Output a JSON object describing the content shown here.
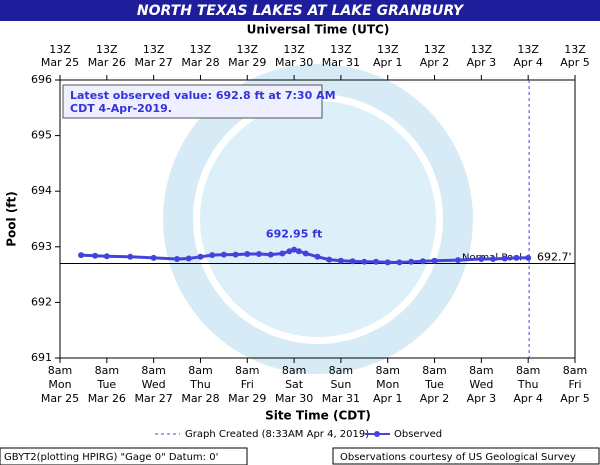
{
  "chart_data": {
    "type": "line",
    "title": "NORTH TEXAS LAKES AT LAKE GRANBURY",
    "x2_label": "Universal Time (UTC)",
    "x_label": "Site Time (CDT)",
    "y_label": "Pool (ft)",
    "xlim": [
      0,
      11
    ],
    "ylim": [
      691,
      696
    ],
    "yticks": [
      691,
      692,
      693,
      694,
      695,
      696
    ],
    "xticks": [
      {
        "value": 0,
        "label": [
          "8am",
          "Mon",
          "Mar 25"
        ]
      },
      {
        "value": 1,
        "label": [
          "8am",
          "Tue",
          "Mar 26"
        ]
      },
      {
        "value": 2,
        "label": [
          "8am",
          "Wed",
          "Mar 27"
        ]
      },
      {
        "value": 3,
        "label": [
          "8am",
          "Thu",
          "Mar 28"
        ]
      },
      {
        "value": 4,
        "label": [
          "8am",
          "Fri",
          "Mar 29"
        ]
      },
      {
        "value": 5,
        "label": [
          "8am",
          "Sat",
          "Mar 30"
        ]
      },
      {
        "value": 6,
        "label": [
          "8am",
          "Sun",
          "Mar 31"
        ]
      },
      {
        "value": 7,
        "label": [
          "8am",
          "Mon",
          "Apr 1"
        ]
      },
      {
        "value": 8,
        "label": [
          "8am",
          "Tue",
          "Apr 2"
        ]
      },
      {
        "value": 9,
        "label": [
          "8am",
          "Wed",
          "Apr 3"
        ]
      },
      {
        "value": 10,
        "label": [
          "8am",
          "Thu",
          "Apr 4"
        ]
      },
      {
        "value": 11,
        "label": [
          "8am",
          "Fri",
          "Apr 5"
        ]
      }
    ],
    "x2ticks": [
      {
        "value": 0,
        "label": [
          "13Z",
          "Mar 25"
        ]
      },
      {
        "value": 1,
        "label": [
          "13Z",
          "Mar 26"
        ]
      },
      {
        "value": 2,
        "label": [
          "13Z",
          "Mar 27"
        ]
      },
      {
        "value": 3,
        "label": [
          "13Z",
          "Mar 28"
        ]
      },
      {
        "value": 4,
        "label": [
          "13Z",
          "Mar 29"
        ]
      },
      {
        "value": 5,
        "label": [
          "13Z",
          "Mar 30"
        ]
      },
      {
        "value": 6,
        "label": [
          "13Z",
          "Mar 31"
        ]
      },
      {
        "value": 7,
        "label": [
          "13Z",
          "Apr 1"
        ]
      },
      {
        "value": 8,
        "label": [
          "13Z",
          "Apr 2"
        ]
      },
      {
        "value": 9,
        "label": [
          "13Z",
          "Apr 3"
        ]
      },
      {
        "value": 10,
        "label": [
          "13Z",
          "Apr 4"
        ]
      },
      {
        "value": 11,
        "label": [
          "13Z",
          "Apr 5"
        ]
      }
    ],
    "grid": false,
    "series": [
      {
        "name": "Observed",
        "color": "#4444dd",
        "x": [
          0.45,
          0.75,
          1.0,
          1.5,
          2.0,
          2.5,
          2.75,
          3.0,
          3.25,
          3.5,
          3.75,
          4.0,
          4.25,
          4.5,
          4.75,
          4.9,
          5.0,
          5.1,
          5.25,
          5.5,
          5.75,
          6.0,
          6.25,
          6.5,
          6.75,
          7.0,
          7.25,
          7.5,
          7.75,
          8.0,
          8.5,
          9.0,
          9.25,
          9.5,
          9.75,
          10.0
        ],
        "values": [
          692.85,
          692.84,
          692.83,
          692.82,
          692.8,
          692.78,
          692.79,
          692.82,
          692.85,
          692.86,
          692.86,
          692.87,
          692.87,
          692.86,
          692.88,
          692.92,
          692.95,
          692.92,
          692.88,
          692.82,
          692.77,
          692.75,
          692.74,
          692.73,
          692.73,
          692.72,
          692.72,
          692.73,
          692.74,
          692.75,
          692.76,
          692.78,
          692.78,
          692.79,
          692.8,
          692.8
        ]
      }
    ],
    "graph_created": {
      "name": "Graph Created (8:33AM Apr 4, 2019)",
      "x": 10.02
    },
    "normal_pool": {
      "name": "Normal Pool",
      "value": 692.7,
      "value_label": "692.7'"
    },
    "peak_label": {
      "text": "692.95 ft",
      "x": 5.0,
      "value": 692.95
    },
    "latest_note": [
      "Latest observed value: 692.8 ft at 7:30 AM",
      "CDT 4-Apr-2019."
    ],
    "footer_left": "GBYT2(plotting HPIRG) \"Gage 0\" Datum: 0'",
    "footer_right": "Observations courtesy of US Geological Survey"
  }
}
